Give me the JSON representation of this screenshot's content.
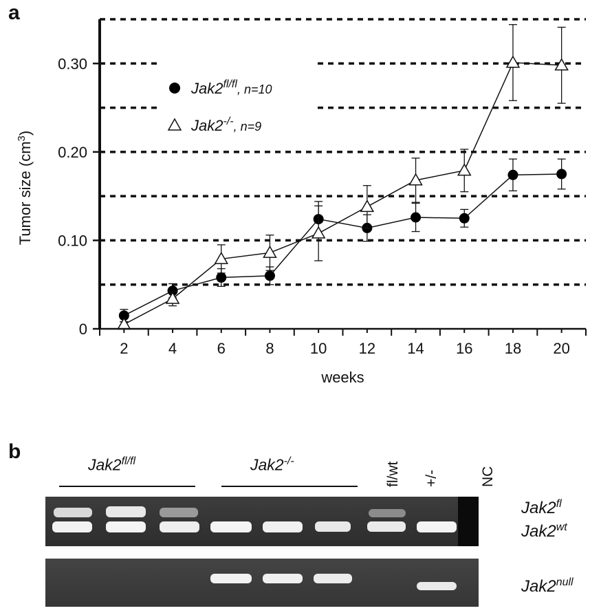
{
  "panel_a_label": "a",
  "panel_b_label": "b",
  "chart_data": {
    "type": "line",
    "xlabel": "weeks",
    "ylabel": "Tumor size (cm3)",
    "ylabel_main": "Tumor size (cm",
    "ylabel_sup": "3",
    "ylabel_close": ")",
    "x": [
      2,
      4,
      6,
      8,
      10,
      12,
      14,
      16,
      18,
      20
    ],
    "xticks": [
      "2",
      "4",
      "6",
      "8",
      "10",
      "12",
      "14",
      "16",
      "18",
      "20"
    ],
    "yticks": [
      {
        "value": 0,
        "label": "0"
      },
      {
        "value": 0.1,
        "label": "0.10"
      },
      {
        "value": 0.2,
        "label": "0.20"
      },
      {
        "value": 0.3,
        "label": "0.30"
      }
    ],
    "ylim": [
      0,
      0.35
    ],
    "xlim": [
      1,
      21
    ],
    "gridlines": [
      0.05,
      0.1,
      0.15,
      0.2,
      0.25,
      0.3,
      0.35
    ],
    "grid": "dashed horizontal",
    "legend_position": "upper-left",
    "series": [
      {
        "name": "Jak2fl/fl, n=10",
        "name_main": "Jak2",
        "name_sup": "fl/fl",
        "name_tail": ", n=10",
        "marker": "filled-circle",
        "values": [
          0.015,
          0.043,
          0.058,
          0.06,
          0.124,
          0.114,
          0.126,
          0.125,
          0.174,
          0.175
        ],
        "errors": [
          0.007,
          0.008,
          0.01,
          0.01,
          0.02,
          0.015,
          0.016,
          0.01,
          0.018,
          0.017
        ]
      },
      {
        "name": "Jak2-/-, n=9",
        "name_main": "Jak2",
        "name_sup": "-/-",
        "name_tail": ", n=9",
        "marker": "open-triangle",
        "values": [
          0.005,
          0.034,
          0.079,
          0.086,
          0.108,
          0.138,
          0.168,
          0.179,
          0.301,
          0.298
        ],
        "errors": [
          0.003,
          0.008,
          0.016,
          0.02,
          0.031,
          0.024,
          0.025,
          0.024,
          0.043,
          0.043
        ]
      }
    ]
  },
  "gel": {
    "groups": [
      {
        "main": "Jak2",
        "sup": "fl/fl"
      },
      {
        "main": "Jak2",
        "sup": "-/-"
      }
    ],
    "single_lanes": [
      "fl/wt",
      "+/-",
      "NC"
    ],
    "band_labels": [
      {
        "main": "Jak2",
        "sup": "fl"
      },
      {
        "main": "Jak2",
        "sup": "wt"
      },
      {
        "main": "Jak2",
        "sup": "null"
      }
    ]
  }
}
